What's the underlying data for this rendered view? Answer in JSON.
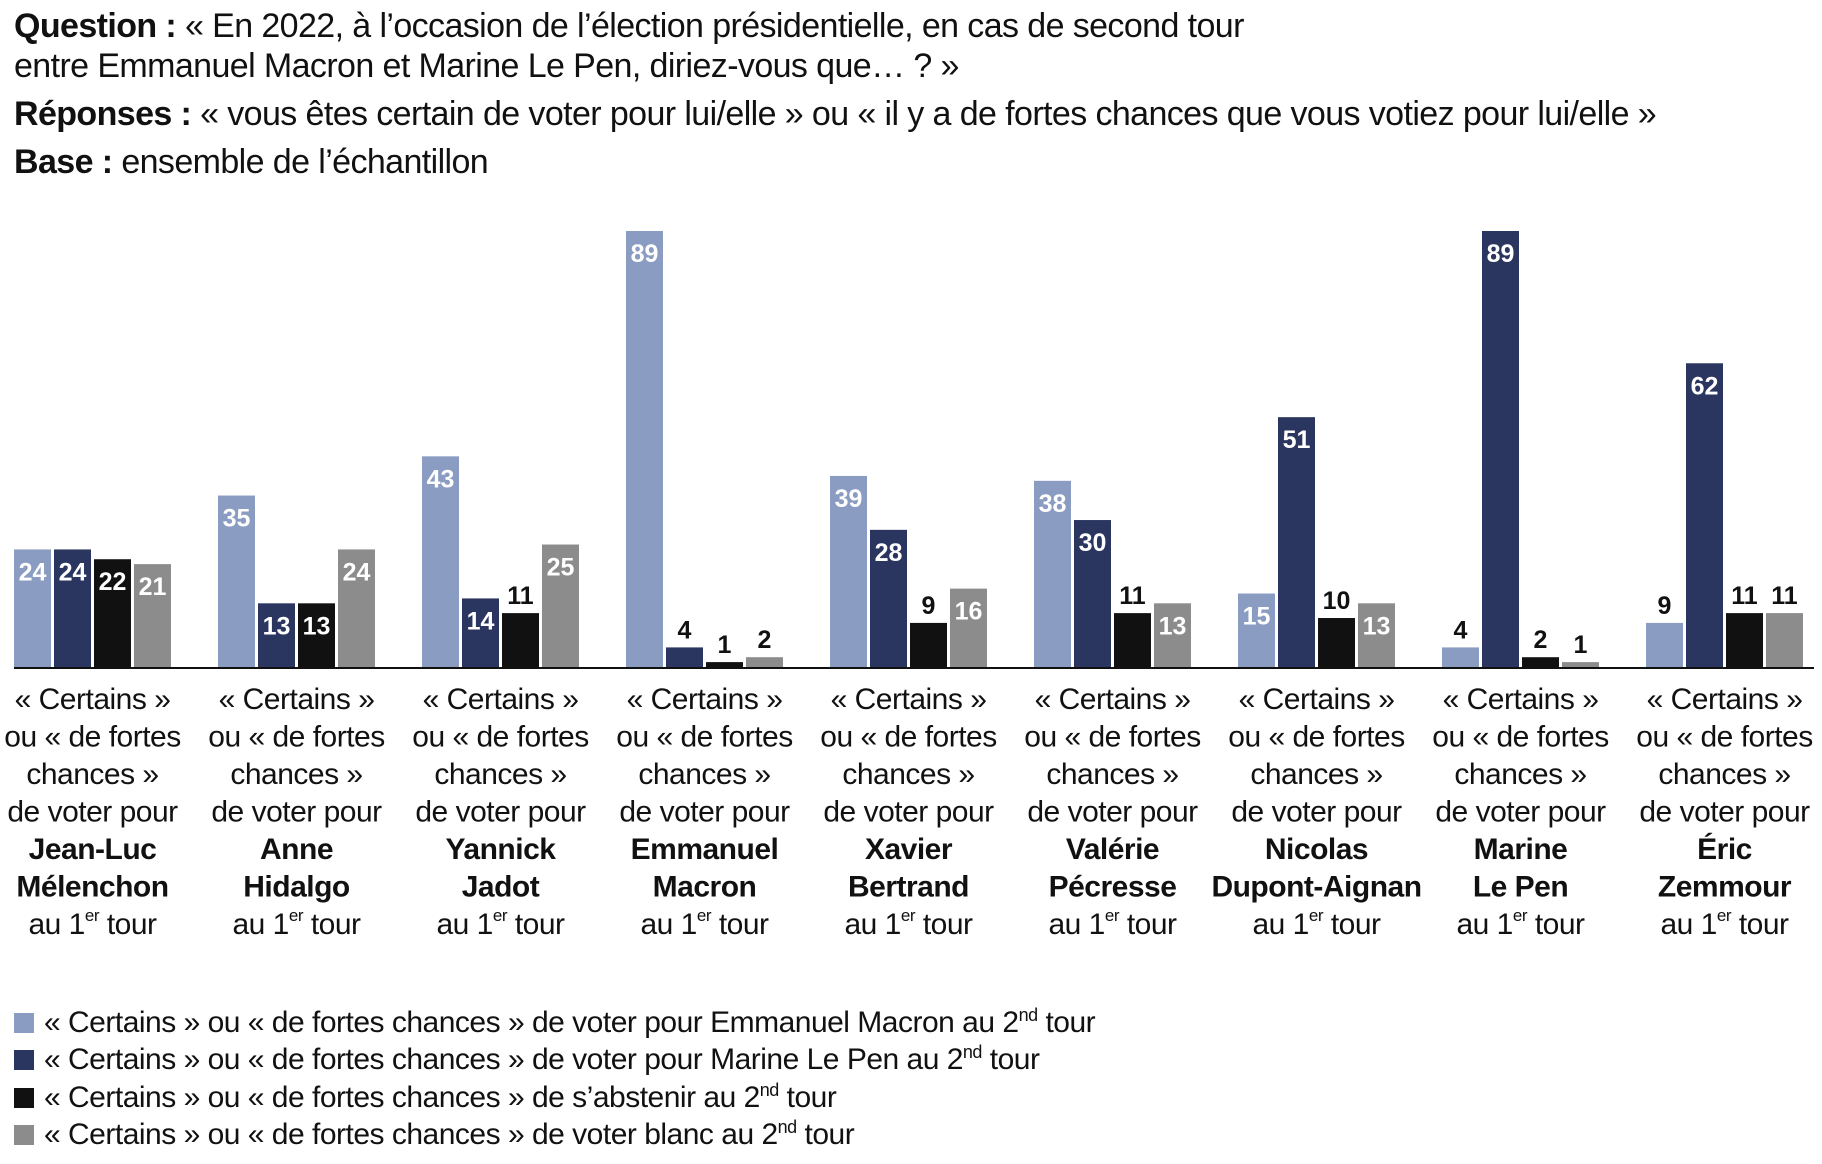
{
  "header": {
    "question_label": "Question :",
    "question_line1": "« En 2022, à l’occasion de l’élection présidentielle, en cas de second tour",
    "question_line2": "entre Emmanuel Macron et Marine Le Pen, diriez-vous que… ? »",
    "responses_label": "Réponses :",
    "responses_text": "« vous êtes certain de voter pour lui/elle » ou « il y a de fortes chances que vous votiez pour lui/elle »",
    "base_label": "Base :",
    "base_text": "ensemble de l’échantillon"
  },
  "colors": {
    "macron": "#8a9cc2",
    "le_pen": "#2b3660",
    "abstain": "#111111",
    "blank": "#8c8c8c",
    "axis": "#111111"
  },
  "chart_data": {
    "type": "bar",
    "categories": [
      {
        "pre": [
          "« Certains »",
          "ou « de fortes",
          "chances »",
          "de voter pour"
        ],
        "name": [
          "Jean-Luc",
          "Mélenchon"
        ],
        "suffix": "au 1",
        "sup": "er",
        "suffix_end": " tour"
      },
      {
        "pre": [
          "« Certains »",
          "ou « de fortes",
          "chances »",
          "de voter pour"
        ],
        "name": [
          "Anne",
          "Hidalgo"
        ],
        "suffix": "au 1",
        "sup": "er",
        "suffix_end": " tour"
      },
      {
        "pre": [
          "« Certains »",
          "ou « de fortes",
          "chances »",
          "de voter pour"
        ],
        "name": [
          "Yannick",
          "Jadot"
        ],
        "suffix": "au 1",
        "sup": "er",
        "suffix_end": " tour"
      },
      {
        "pre": [
          "« Certains »",
          "ou « de fortes",
          "chances »",
          "de voter pour"
        ],
        "name": [
          "Emmanuel",
          "Macron"
        ],
        "suffix": "au 1",
        "sup": "er",
        "suffix_end": " tour"
      },
      {
        "pre": [
          "« Certains »",
          "ou « de fortes",
          "chances »",
          "de voter pour"
        ],
        "name": [
          "Xavier",
          "Bertrand"
        ],
        "suffix": "au 1",
        "sup": "er",
        "suffix_end": " tour"
      },
      {
        "pre": [
          "« Certains »",
          "ou « de fortes",
          "chances »",
          "de voter pour"
        ],
        "name": [
          "Valérie",
          "Pécresse"
        ],
        "suffix": "au 1",
        "sup": "er",
        "suffix_end": " tour"
      },
      {
        "pre": [
          "« Certains »",
          "ou « de fortes",
          "chances »",
          "de voter pour"
        ],
        "name": [
          "Nicolas",
          "Dupont-Aignan"
        ],
        "suffix": "au 1",
        "sup": "er",
        "suffix_end": " tour"
      },
      {
        "pre": [
          "« Certains »",
          "ou « de fortes",
          "chances »",
          "de voter pour"
        ],
        "name": [
          "Marine",
          "Le Pen"
        ],
        "suffix": "au 1",
        "sup": "er",
        "suffix_end": " tour"
      },
      {
        "pre": [
          "« Certains »",
          "ou « de fortes",
          "chances »",
          "de voter pour"
        ],
        "name": [
          "Éric",
          "Zemmour"
        ],
        "suffix": "au 1",
        "sup": "er",
        "suffix_end": " tour"
      }
    ],
    "series": [
      {
        "key": "macron",
        "legend": "« Certains » ou « de fortes chances » de voter pour Emmanuel Macron au 2",
        "legend_sup": "nd",
        "legend_end": " tour",
        "values": [
          24,
          35,
          43,
          89,
          39,
          38,
          15,
          4,
          9
        ]
      },
      {
        "key": "le_pen",
        "legend": "« Certains » ou « de fortes chances » de voter pour Marine Le Pen au 2",
        "legend_sup": "nd",
        "legend_end": " tour",
        "values": [
          24,
          13,
          14,
          4,
          28,
          30,
          51,
          89,
          62
        ]
      },
      {
        "key": "abstain",
        "legend": "« Certains » ou « de fortes chances » de s’abstenir au 2",
        "legend_sup": "nd",
        "legend_end": " tour",
        "values": [
          22,
          13,
          11,
          1,
          9,
          11,
          10,
          2,
          11
        ]
      },
      {
        "key": "blank",
        "legend": "« Certains » ou « de fortes chances » de voter blanc au 2",
        "legend_sup": "nd",
        "legend_end": " tour",
        "values": [
          21,
          24,
          25,
          2,
          16,
          13,
          13,
          1,
          11
        ]
      }
    ],
    "ylim": [
      0,
      89
    ],
    "grid": false,
    "legend_position": "bottom-left"
  }
}
